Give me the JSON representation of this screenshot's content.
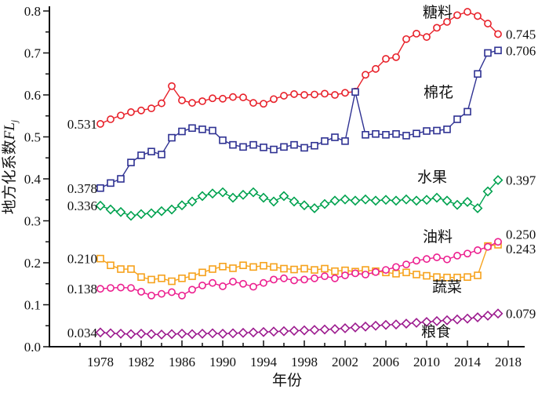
{
  "chart_data": {
    "type": "line",
    "title": "",
    "xlabel": "年份",
    "ylabel": "地方化系数FLj",
    "ylabel_cn": "地方化系数",
    "ylabel_var": "FL",
    "ylabel_sub": "j",
    "x": [
      1978,
      1979,
      1980,
      1981,
      1982,
      1983,
      1984,
      1985,
      1986,
      1987,
      1988,
      1989,
      1990,
      1991,
      1992,
      1993,
      1994,
      1995,
      1996,
      1997,
      1998,
      1999,
      2000,
      2001,
      2002,
      2003,
      2004,
      2005,
      2006,
      2007,
      2008,
      2009,
      2010,
      2011,
      2012,
      2013,
      2014,
      2015,
      2016,
      2017
    ],
    "x_axis": {
      "major_tick_labels": [
        "1978",
        "1982",
        "1986",
        "1990",
        "1994",
        "1998",
        "2002",
        "2006",
        "2010",
        "2014",
        "2018"
      ],
      "major_ticks": [
        1978,
        1982,
        1986,
        1990,
        1994,
        1998,
        2002,
        2006,
        2010,
        2014,
        2018
      ],
      "minor_tick_step_years": 2,
      "minor_tick_start": 1976,
      "minor_tick_end": 2018
    },
    "y_axis": {
      "range": [
        0.0,
        0.8
      ],
      "major_step": 0.1,
      "minor_step": 0.05,
      "tick_labels": [
        "0.0",
        "0.1",
        "0.2",
        "0.3",
        "0.4",
        "0.5",
        "0.6",
        "0.7",
        "0.8"
      ]
    },
    "grid": false,
    "legend_position": "inline-labels",
    "series": [
      {
        "id": "tangliao",
        "label": "糖料",
        "color": "#e8212a",
        "marker": "circle",
        "start_label": "0.531",
        "end_label": "0.745",
        "values": [
          0.531,
          0.542,
          0.551,
          0.559,
          0.563,
          0.568,
          0.58,
          0.621,
          0.587,
          0.581,
          0.585,
          0.592,
          0.591,
          0.595,
          0.594,
          0.581,
          0.579,
          0.59,
          0.598,
          0.602,
          0.6,
          0.601,
          0.603,
          0.6,
          0.605,
          0.608,
          0.648,
          0.662,
          0.686,
          0.69,
          0.733,
          0.746,
          0.738,
          0.76,
          0.774,
          0.79,
          0.798,
          0.788,
          0.77,
          0.745
        ]
      },
      {
        "id": "mianhua",
        "label": "棉花",
        "color": "#2e3192",
        "marker": "square",
        "start_label": "0.378",
        "end_label": "0.706",
        "values": [
          0.378,
          0.39,
          0.4,
          0.439,
          0.456,
          0.465,
          0.458,
          0.498,
          0.513,
          0.521,
          0.518,
          0.515,
          0.492,
          0.481,
          0.476,
          0.481,
          0.475,
          0.47,
          0.476,
          0.481,
          0.474,
          0.479,
          0.49,
          0.499,
          0.49,
          0.607,
          0.505,
          0.507,
          0.505,
          0.507,
          0.503,
          0.508,
          0.514,
          0.515,
          0.518,
          0.542,
          0.56,
          0.65,
          0.7,
          0.706
        ]
      },
      {
        "id": "shuiguo",
        "label": "水果",
        "color": "#00a24f",
        "marker": "diamond",
        "start_label": "0.336",
        "end_label": "0.397",
        "values": [
          0.336,
          0.327,
          0.321,
          0.312,
          0.316,
          0.318,
          0.323,
          0.327,
          0.337,
          0.346,
          0.359,
          0.365,
          0.368,
          0.355,
          0.362,
          0.368,
          0.355,
          0.346,
          0.359,
          0.346,
          0.337,
          0.33,
          0.34,
          0.348,
          0.351,
          0.348,
          0.351,
          0.348,
          0.35,
          0.348,
          0.351,
          0.348,
          0.35,
          0.355,
          0.348,
          0.338,
          0.345,
          0.33,
          0.37,
          0.397
        ]
      },
      {
        "id": "shucai",
        "label": "蔬菜",
        "color": "#f6a21c",
        "marker": "square",
        "start_label": "0.210",
        "end_label": "0.243",
        "values": [
          0.21,
          0.194,
          0.185,
          0.185,
          0.166,
          0.16,
          0.163,
          0.156,
          0.163,
          0.168,
          0.177,
          0.185,
          0.191,
          0.187,
          0.194,
          0.19,
          0.193,
          0.19,
          0.186,
          0.184,
          0.186,
          0.183,
          0.186,
          0.18,
          0.182,
          0.179,
          0.183,
          0.18,
          0.177,
          0.174,
          0.177,
          0.172,
          0.169,
          0.166,
          0.165,
          0.165,
          0.166,
          0.17,
          0.24,
          0.243
        ]
      },
      {
        "id": "youliao",
        "label": "油料",
        "color": "#ec1f8f",
        "marker": "circle",
        "start_label": "0.138",
        "end_label": "0.250",
        "values": [
          0.138,
          0.14,
          0.141,
          0.14,
          0.131,
          0.122,
          0.126,
          0.13,
          0.122,
          0.136,
          0.146,
          0.152,
          0.144,
          0.155,
          0.15,
          0.143,
          0.152,
          0.16,
          0.163,
          0.158,
          0.16,
          0.163,
          0.168,
          0.163,
          0.17,
          0.175,
          0.172,
          0.178,
          0.183,
          0.19,
          0.196,
          0.205,
          0.209,
          0.213,
          0.208,
          0.217,
          0.222,
          0.23,
          0.238,
          0.25
        ]
      },
      {
        "id": "liangshi",
        "label": "粮食",
        "color": "#9c1a8e",
        "marker": "diamond",
        "start_label": "0.034",
        "end_label": "0.079",
        "values": [
          0.034,
          0.032,
          0.031,
          0.03,
          0.031,
          0.03,
          0.029,
          0.03,
          0.031,
          0.03,
          0.031,
          0.032,
          0.031,
          0.032,
          0.033,
          0.034,
          0.035,
          0.036,
          0.037,
          0.038,
          0.039,
          0.04,
          0.041,
          0.042,
          0.044,
          0.046,
          0.048,
          0.05,
          0.052,
          0.053,
          0.055,
          0.057,
          0.059,
          0.061,
          0.063,
          0.065,
          0.067,
          0.07,
          0.074,
          0.079
        ]
      }
    ]
  }
}
